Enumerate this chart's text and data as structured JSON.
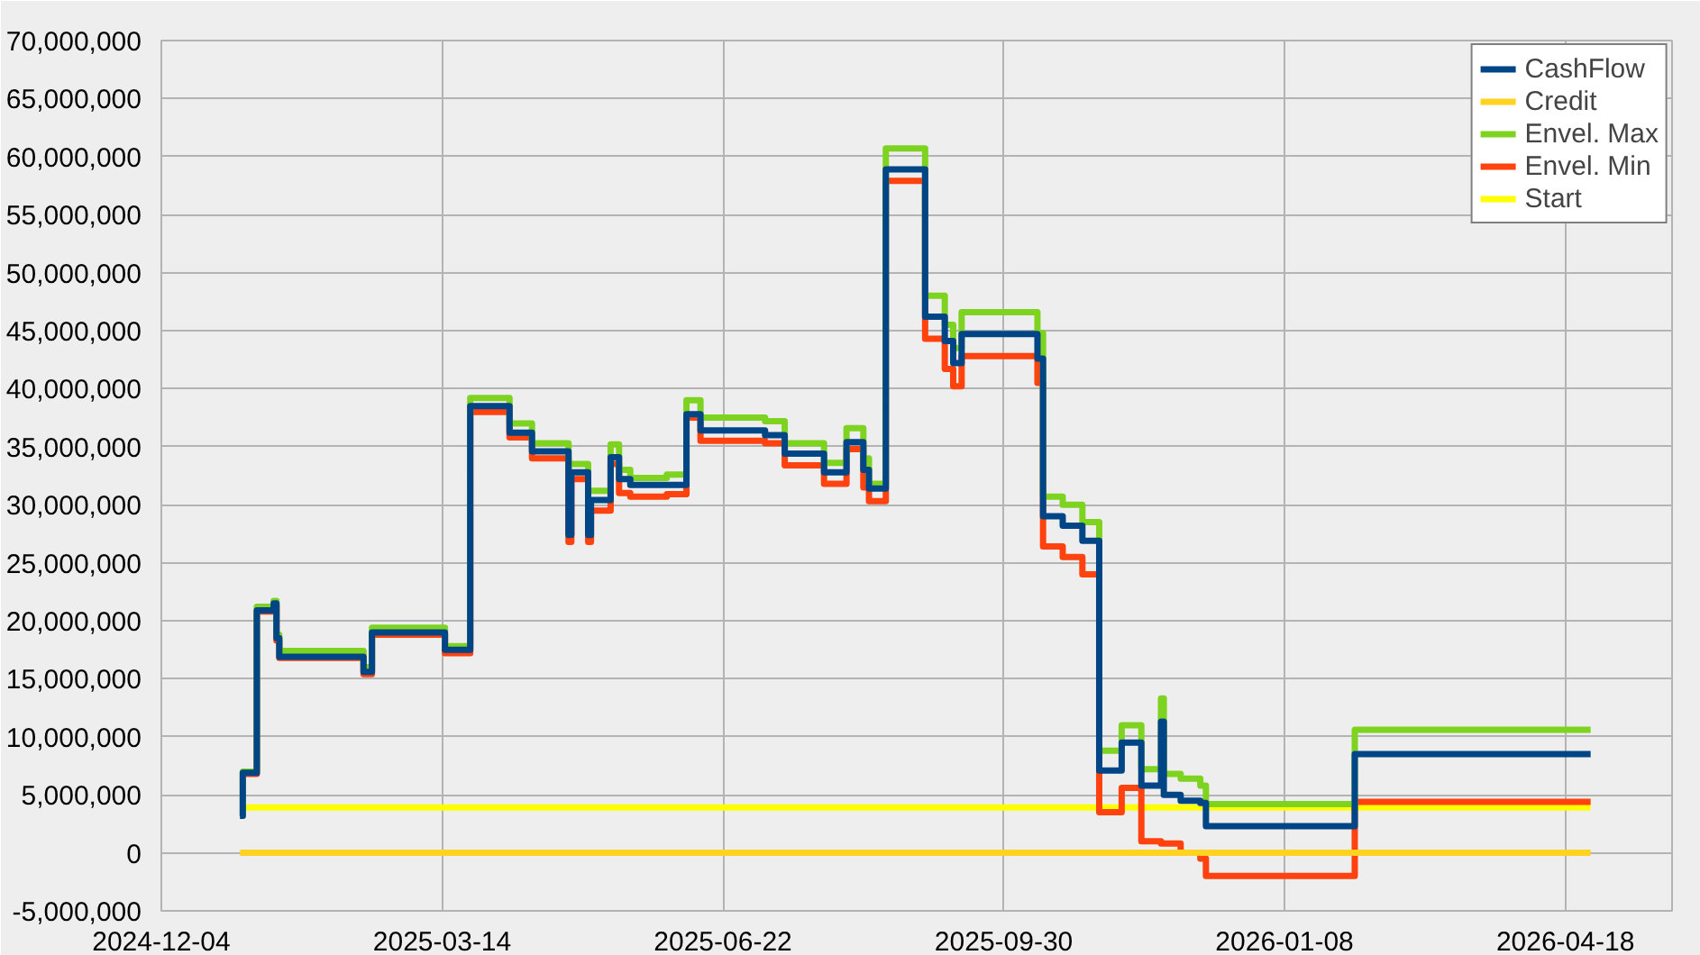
{
  "chart_data": {
    "type": "step",
    "x": [
      "2025-01-01",
      "2025-01-02",
      "2025-01-07",
      "2025-01-13",
      "2025-01-14",
      "2025-01-15",
      "2025-02-14",
      "2025-02-17",
      "2025-03-15",
      "2025-03-24",
      "2025-04-07",
      "2025-04-15",
      "2025-04-28",
      "2025-04-29",
      "2025-05-05",
      "2025-05-06",
      "2025-05-13",
      "2025-05-16",
      "2025-05-20",
      "2025-06-02",
      "2025-06-09",
      "2025-06-14",
      "2025-07-07",
      "2025-07-14",
      "2025-07-28",
      "2025-08-05",
      "2025-08-11",
      "2025-08-13",
      "2025-08-19",
      "2025-09-02",
      "2025-09-09",
      "2025-09-12",
      "2025-09-15",
      "2025-10-12",
      "2025-10-14",
      "2025-10-21",
      "2025-10-28",
      "2025-11-03",
      "2025-11-11",
      "2025-11-18",
      "2025-11-25",
      "2025-11-26",
      "2025-12-02",
      "2025-12-09",
      "2025-12-11",
      "2026-02-02",
      "2026-04-27"
    ],
    "series": [
      {
        "name": "CashFlow",
        "color": "#004586",
        "values": [
          3200000,
          6900000,
          20900000,
          21500000,
          18500000,
          16900000,
          15600000,
          19000000,
          17500000,
          38500000,
          36200000,
          34600000,
          27400000,
          32800000,
          27400000,
          30400000,
          34100000,
          32200000,
          31700000,
          31700000,
          37800000,
          36400000,
          36000000,
          34400000,
          32800000,
          35400000,
          33000000,
          31400000,
          58900000,
          46200000,
          44100000,
          42200000,
          44700000,
          42600000,
          29000000,
          28200000,
          26900000,
          7100000,
          9500000,
          5800000,
          11300000,
          5000000,
          4500000,
          4300000,
          2300000,
          8500000,
          8500000
        ]
      },
      {
        "name": "Credit",
        "color": "#ffd320",
        "type": "line",
        "x": [
          "2025-01-01",
          "2026-04-27"
        ],
        "values": [
          0,
          0
        ]
      },
      {
        "name": "Envel. Max",
        "color": "#7ed321",
        "values": [
          3200000,
          7000000,
          21200000,
          21700000,
          18800000,
          17400000,
          16000000,
          19400000,
          17800000,
          39200000,
          37000000,
          35300000,
          33500000,
          33500000,
          31200000,
          31200000,
          35200000,
          33000000,
          32300000,
          32600000,
          39000000,
          37500000,
          37200000,
          35300000,
          33600000,
          36600000,
          34000000,
          31800000,
          60700000,
          48000000,
          45500000,
          43500000,
          46600000,
          44800000,
          30700000,
          30000000,
          28500000,
          8800000,
          11000000,
          7200000,
          13300000,
          6800000,
          6400000,
          5800000,
          4200000,
          10600000,
          10600000
        ]
      },
      {
        "name": "Envel. Min",
        "color": "#ff420e",
        "values": [
          null,
          6800000,
          20800000,
          21300000,
          18300000,
          16800000,
          15400000,
          18800000,
          17200000,
          38000000,
          35800000,
          34000000,
          26800000,
          32200000,
          26800000,
          29500000,
          33500000,
          31000000,
          30700000,
          30900000,
          37500000,
          35500000,
          35300000,
          33400000,
          31800000,
          34800000,
          31500000,
          30300000,
          57900000,
          44300000,
          41700000,
          40200000,
          42800000,
          40500000,
          26400000,
          25500000,
          24000000,
          3500000,
          5600000,
          1000000,
          800000,
          800000,
          0,
          -500000,
          -2000000,
          4400000,
          4400000
        ]
      },
      {
        "name": "Start",
        "color": "#ffff00",
        "type": "line",
        "x": [
          "2025-01-01",
          "2026-04-27"
        ],
        "values": [
          3900000,
          3900000
        ]
      }
    ],
    "xlim": [
      "2024-12-04",
      "2026-05-26"
    ],
    "xticks": [
      "2024-12-04",
      "2025-03-14",
      "2025-06-22",
      "2025-09-30",
      "2026-01-08",
      "2026-04-18"
    ],
    "ylim": [
      -5000000,
      70000000
    ],
    "yticks": [
      {
        "value": -5000000,
        "label": "-5,000,000"
      },
      0,
      {
        "value": 5000000,
        "label": "5,000,000"
      },
      {
        "value": 10000000,
        "label": "10,000,000"
      },
      {
        "value": 15000000,
        "label": "15,000,000"
      },
      {
        "value": 20000000,
        "label": "20,000,000"
      },
      {
        "value": 25000000,
        "label": "25,000,000"
      },
      {
        "value": 30000000,
        "label": "30,000,000"
      },
      {
        "value": 35000000,
        "label": "35,000,000"
      },
      {
        "value": 40000000,
        "label": "40,000,000"
      },
      {
        "value": 45000000,
        "label": "45,000,000"
      },
      {
        "value": 50000000,
        "label": "50,000,000"
      },
      {
        "value": 55000000,
        "label": "55,000,000"
      },
      {
        "value": 60000000,
        "label": "60,000,000"
      },
      {
        "value": 65000000,
        "label": "65,000,000"
      },
      {
        "value": 70000000,
        "label": "70,000,000"
      }
    ],
    "grid": true,
    "legend": "top right",
    "line_style": "solid"
  }
}
